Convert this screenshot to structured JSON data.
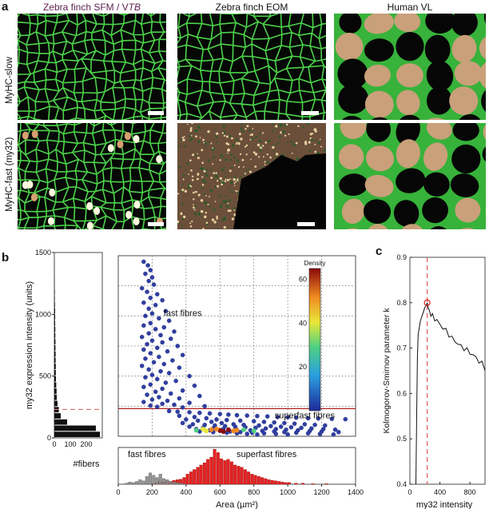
{
  "panels": {
    "a": {
      "label": "a",
      "columns": [
        {
          "prefix": "Zebra finch SFM / V",
          "italic": "TB",
          "color": "#5b1f4e"
        },
        {
          "prefix": "Zebra finch EOM",
          "italic": "",
          "color": "#111111"
        },
        {
          "prefix": "Human VL",
          "italic": "",
          "color": "#111111"
        }
      ],
      "rows": [
        "MyHC-slow",
        "MyHC-fast (my32)"
      ]
    },
    "b": {
      "label": "b"
    },
    "c": {
      "label": "c"
    }
  },
  "chart_data": [
    {
      "id": "b-histogram-y",
      "type": "bar",
      "orientation": "horizontal",
      "ylabel": "my32 expression intensity (units)",
      "xlabel": "#fibers",
      "xlim": [
        0,
        300
      ],
      "ylim": [
        0,
        1500
      ],
      "xticks": [
        0,
        100,
        200
      ],
      "yticks": [
        0,
        500,
        1000,
        1500
      ],
      "threshold": 230,
      "bins": [
        25,
        75,
        125,
        175,
        225,
        275,
        325,
        375,
        425,
        475,
        525,
        575,
        625,
        675,
        725,
        775,
        825,
        875,
        925,
        975,
        1025,
        1075,
        1125,
        1175,
        1225,
        1275,
        1325,
        1375,
        1425
      ],
      "counts": [
        285,
        260,
        80,
        40,
        28,
        20,
        15,
        14,
        12,
        10,
        9,
        9,
        8,
        8,
        7,
        7,
        6,
        6,
        5,
        5,
        5,
        4,
        3,
        3,
        2,
        2,
        1,
        1,
        1
      ]
    },
    {
      "id": "b-scatter",
      "type": "scatter",
      "xlim": [
        0,
        1400
      ],
      "ylim": [
        0,
        1500
      ],
      "grid": true,
      "threshold": 230,
      "annotations": [
        "fast fibres",
        "superfast fibres"
      ],
      "colorbar": {
        "title": "Density",
        "ticks": [
          20,
          40,
          60
        ],
        "range": [
          0,
          65
        ]
      },
      "fast_points": [
        [
          150,
          1450
        ],
        [
          175,
          1420
        ],
        [
          190,
          1380
        ],
        [
          160,
          1350
        ],
        [
          200,
          1320
        ],
        [
          180,
          1290
        ],
        [
          210,
          1260
        ],
        [
          140,
          1230
        ],
        [
          170,
          1200
        ],
        [
          230,
          1180
        ],
        [
          190,
          1150
        ],
        [
          260,
          1130
        ],
        [
          150,
          1110
        ],
        [
          220,
          1090
        ],
        [
          180,
          1060
        ],
        [
          280,
          1040
        ],
        [
          200,
          1020
        ],
        [
          160,
          1000
        ],
        [
          240,
          980
        ],
        [
          300,
          960
        ],
        [
          190,
          940
        ],
        [
          150,
          920
        ],
        [
          270,
          905
        ],
        [
          220,
          890
        ],
        [
          330,
          870
        ],
        [
          180,
          855
        ],
        [
          250,
          840
        ],
        [
          140,
          825
        ],
        [
          310,
          810
        ],
        [
          200,
          795
        ],
        [
          260,
          780
        ],
        [
          170,
          765
        ],
        [
          350,
          750
        ],
        [
          230,
          735
        ],
        [
          150,
          720
        ],
        [
          290,
          705
        ],
        [
          190,
          690
        ],
        [
          380,
          675
        ],
        [
          240,
          660
        ],
        [
          160,
          645
        ],
        [
          320,
          630
        ],
        [
          210,
          615
        ],
        [
          270,
          600
        ],
        [
          140,
          585
        ],
        [
          360,
          570
        ],
        [
          180,
          555
        ],
        [
          250,
          540
        ],
        [
          300,
          525
        ],
        [
          200,
          510
        ],
        [
          420,
          500
        ],
        [
          160,
          490
        ],
        [
          230,
          475
        ],
        [
          340,
          460
        ],
        [
          280,
          445
        ],
        [
          190,
          430
        ],
        [
          450,
          420
        ],
        [
          150,
          410
        ],
        [
          260,
          395
        ],
        [
          380,
          380
        ],
        [
          220,
          370
        ],
        [
          310,
          355
        ],
        [
          170,
          345
        ],
        [
          480,
          335
        ],
        [
          240,
          325
        ],
        [
          360,
          315
        ],
        [
          200,
          305
        ],
        [
          290,
          295
        ],
        [
          150,
          285
        ],
        [
          420,
          278
        ],
        [
          260,
          270
        ],
        [
          330,
          262
        ],
        [
          190,
          255
        ],
        [
          510,
          250
        ],
        [
          230,
          245
        ],
        [
          380,
          240
        ]
      ],
      "superfast_points": [
        [
          300,
          210
        ],
        [
          350,
          205
        ],
        [
          420,
          200
        ],
        [
          480,
          195
        ],
        [
          540,
          190
        ],
        [
          600,
          185
        ],
        [
          650,
          180
        ],
        [
          700,
          175
        ],
        [
          760,
          172
        ],
        [
          820,
          168
        ],
        [
          880,
          165
        ],
        [
          940,
          160
        ],
        [
          1000,
          158
        ],
        [
          1050,
          155
        ],
        [
          1120,
          150
        ],
        [
          1180,
          148
        ],
        [
          1260,
          145
        ],
        [
          1340,
          142
        ],
        [
          360,
          170
        ],
        [
          450,
          160
        ],
        [
          520,
          150
        ],
        [
          580,
          140
        ],
        [
          640,
          135
        ],
        [
          720,
          130
        ],
        [
          800,
          125
        ],
        [
          860,
          120
        ],
        [
          920,
          115
        ],
        [
          980,
          110
        ],
        [
          1040,
          105
        ],
        [
          1100,
          100
        ],
        [
          1160,
          95
        ],
        [
          1220,
          90
        ],
        [
          400,
          140
        ],
        [
          470,
          130
        ],
        [
          550,
          120
        ],
        [
          610,
          110
        ],
        [
          680,
          100
        ],
        [
          740,
          95
        ],
        [
          830,
          90
        ],
        [
          900,
          85
        ],
        [
          960,
          80
        ],
        [
          1020,
          75
        ],
        [
          1080,
          70
        ],
        [
          1140,
          65
        ],
        [
          1210,
          60
        ],
        [
          1280,
          55
        ],
        [
          380,
          110
        ],
        [
          440,
          100
        ],
        [
          510,
          95
        ],
        [
          570,
          90
        ],
        [
          630,
          85
        ],
        [
          690,
          80
        ],
        [
          750,
          75
        ],
        [
          810,
          70
        ],
        [
          870,
          65
        ],
        [
          930,
          60
        ],
        [
          990,
          55
        ],
        [
          1060,
          50
        ],
        [
          1130,
          45
        ],
        [
          1200,
          40
        ],
        [
          1300,
          35
        ],
        [
          420,
          80
        ],
        [
          500,
          70
        ],
        [
          560,
          65
        ],
        [
          620,
          60
        ],
        [
          700,
          55
        ],
        [
          780,
          50
        ],
        [
          850,
          45
        ],
        [
          920,
          40
        ],
        [
          980,
          35
        ],
        [
          1050,
          30
        ],
        [
          1120,
          25
        ],
        [
          1190,
          20
        ],
        [
          1270,
          15
        ],
        [
          460,
          60
        ],
        [
          540,
          50
        ],
        [
          600,
          45
        ],
        [
          660,
          40
        ],
        [
          720,
          35
        ],
        [
          790,
          30
        ],
        [
          860,
          25
        ],
        [
          930,
          20
        ],
        [
          1000,
          15
        ],
        [
          480,
          40
        ],
        [
          560,
          35
        ],
        [
          640,
          30
        ],
        [
          700,
          25
        ],
        [
          760,
          20
        ],
        [
          820,
          15
        ]
      ],
      "hot_points": [
        [
          500,
          60,
          0.6
        ],
        [
          550,
          55,
          0.8
        ],
        [
          600,
          50,
          1.0
        ],
        [
          650,
          55,
          0.9
        ],
        [
          700,
          50,
          0.7
        ],
        [
          520,
          45,
          0.5
        ],
        [
          620,
          40,
          0.85
        ],
        [
          680,
          45,
          0.65
        ],
        [
          580,
          60,
          0.75
        ],
        [
          740,
          55,
          0.45
        ],
        [
          460,
          50,
          0.35
        ],
        [
          800,
          45,
          0.3
        ]
      ]
    },
    {
      "id": "b-area-histogram",
      "type": "bar",
      "xlabel": "Area (µm²)",
      "xlim": [
        0,
        1400
      ],
      "xticks": [
        0,
        200,
        400,
        600,
        800,
        1000,
        1200,
        1400
      ],
      "annotations": [
        "fast fibres",
        "superfast fibres"
      ],
      "bin_width": 20,
      "fast_counts": [
        [
          40,
          2
        ],
        [
          60,
          4
        ],
        [
          80,
          3
        ],
        [
          100,
          5
        ],
        [
          120,
          8
        ],
        [
          140,
          6
        ],
        [
          160,
          14
        ],
        [
          180,
          20
        ],
        [
          200,
          16
        ],
        [
          220,
          12
        ],
        [
          240,
          18
        ],
        [
          260,
          10
        ],
        [
          280,
          8
        ],
        [
          300,
          5
        ],
        [
          320,
          4
        ],
        [
          340,
          3
        ],
        [
          360,
          2
        ],
        [
          380,
          1
        ]
      ],
      "superfast_counts": [
        [
          200,
          2
        ],
        [
          220,
          3
        ],
        [
          240,
          5
        ],
        [
          260,
          4
        ],
        [
          280,
          6
        ],
        [
          300,
          5
        ],
        [
          320,
          7
        ],
        [
          340,
          8
        ],
        [
          360,
          9
        ],
        [
          380,
          12
        ],
        [
          400,
          18
        ],
        [
          420,
          22
        ],
        [
          440,
          26
        ],
        [
          460,
          30
        ],
        [
          480,
          34
        ],
        [
          500,
          38
        ],
        [
          520,
          44
        ],
        [
          540,
          48
        ],
        [
          560,
          62
        ],
        [
          580,
          56
        ],
        [
          600,
          45
        ],
        [
          620,
          42
        ],
        [
          640,
          44
        ],
        [
          660,
          40
        ],
        [
          680,
          34
        ],
        [
          700,
          32
        ],
        [
          720,
          30
        ],
        [
          740,
          26
        ],
        [
          760,
          22
        ],
        [
          780,
          18
        ],
        [
          800,
          16
        ],
        [
          820,
          14
        ],
        [
          840,
          12
        ],
        [
          860,
          10
        ],
        [
          880,
          8
        ],
        [
          900,
          7
        ],
        [
          920,
          6
        ],
        [
          940,
          5
        ],
        [
          960,
          4
        ],
        [
          980,
          3
        ],
        [
          1000,
          3
        ],
        [
          1040,
          2
        ],
        [
          1080,
          2
        ],
        [
          1140,
          1
        ],
        [
          1220,
          1
        ]
      ]
    },
    {
      "id": "c-line",
      "type": "line",
      "xlabel": "my32 intensity",
      "ylabel": "Kolmogorov-Smirnov parameter k",
      "xlim": [
        0,
        1000
      ],
      "ylim": [
        0.4,
        0.9
      ],
      "xticks": [
        0,
        400,
        800
      ],
      "yticks": [
        0.4,
        0.5,
        0.6,
        0.7,
        0.8,
        0.9
      ],
      "threshold": 230,
      "max_point": [
        230,
        0.8
      ],
      "x": [
        80,
        90,
        100,
        110,
        120,
        140,
        160,
        180,
        200,
        220,
        230,
        240,
        260,
        280,
        300,
        330,
        360,
        400,
        440,
        480,
        520,
        560,
        600,
        640,
        680,
        720,
        760,
        800,
        840,
        880,
        920,
        960,
        1000
      ],
      "y": [
        0.4,
        0.55,
        0.68,
        0.73,
        0.74,
        0.76,
        0.77,
        0.78,
        0.79,
        0.795,
        0.8,
        0.79,
        0.78,
        0.775,
        0.77,
        0.765,
        0.76,
        0.752,
        0.745,
        0.738,
        0.73,
        0.722,
        0.715,
        0.71,
        0.703,
        0.7,
        0.695,
        0.69,
        0.685,
        0.678,
        0.672,
        0.665,
        0.655
      ]
    }
  ]
}
